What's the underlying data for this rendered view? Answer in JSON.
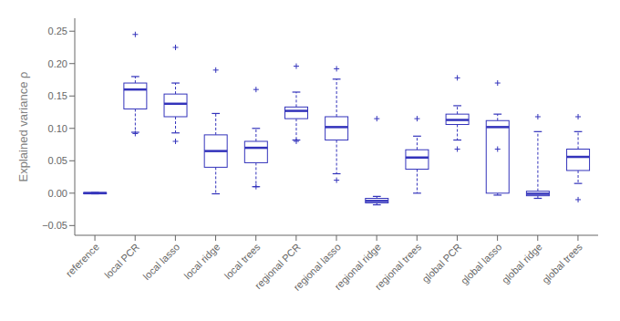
{
  "chart_data": {
    "type": "box",
    "categories": [
      "reference",
      "local PCR",
      "local lasso",
      "local ridge",
      "local trees",
      "regional PCR",
      "regional lasso",
      "regional ridge",
      "regional trees",
      "global PCR",
      "global lasso",
      "global ridge",
      "global trees"
    ],
    "values": [
      {
        "med": 0.0,
        "q1": -0.001,
        "q3": 0.001,
        "whislo": -0.001,
        "whishi": 0.001,
        "fliers_hi": [],
        "fliers_lo": []
      },
      {
        "med": 0.16,
        "q1": 0.13,
        "q3": 0.17,
        "whislo": 0.094,
        "whishi": 0.18,
        "fliers_hi": [
          0.245
        ],
        "fliers_lo": [
          0.092
        ]
      },
      {
        "med": 0.138,
        "q1": 0.118,
        "q3": 0.153,
        "whislo": 0.093,
        "whishi": 0.17,
        "fliers_hi": [
          0.225
        ],
        "fliers_lo": [
          0.08
        ]
      },
      {
        "med": 0.065,
        "q1": 0.04,
        "q3": 0.09,
        "whislo": -0.001,
        "whishi": 0.123,
        "fliers_hi": [
          0.19
        ],
        "fliers_lo": []
      },
      {
        "med": 0.07,
        "q1": 0.047,
        "q3": 0.08,
        "whislo": 0.01,
        "whishi": 0.1,
        "fliers_hi": [
          0.16
        ],
        "fliers_lo": [
          0.01
        ]
      },
      {
        "med": 0.127,
        "q1": 0.115,
        "q3": 0.133,
        "whislo": 0.082,
        "whishi": 0.156,
        "fliers_hi": [
          0.196
        ],
        "fliers_lo": [
          0.08
        ]
      },
      {
        "med": 0.102,
        "q1": 0.082,
        "q3": 0.118,
        "whislo": 0.03,
        "whishi": 0.176,
        "fliers_hi": [
          0.192
        ],
        "fliers_lo": [
          0.02
        ]
      },
      {
        "med": -0.012,
        "q1": -0.015,
        "q3": -0.008,
        "whislo": -0.018,
        "whishi": -0.005,
        "fliers_hi": [
          0.115
        ],
        "fliers_lo": []
      },
      {
        "med": 0.055,
        "q1": 0.037,
        "q3": 0.067,
        "whislo": 0.0,
        "whishi": 0.088,
        "fliers_hi": [
          0.115
        ],
        "fliers_lo": []
      },
      {
        "med": 0.113,
        "q1": 0.106,
        "q3": 0.122,
        "whislo": 0.082,
        "whishi": 0.135,
        "fliers_hi": [
          0.178
        ],
        "fliers_lo": [
          0.068
        ]
      },
      {
        "med": 0.102,
        "q1": 0.0,
        "q3": 0.112,
        "whislo": -0.003,
        "whishi": 0.122,
        "fliers_hi": [
          0.17
        ],
        "fliers_lo": [
          0.068
        ]
      },
      {
        "med": -0.001,
        "q1": -0.004,
        "q3": 0.003,
        "whislo": -0.008,
        "whishi": 0.095,
        "fliers_hi": [
          0.118
        ],
        "fliers_lo": []
      },
      {
        "med": 0.056,
        "q1": 0.035,
        "q3": 0.068,
        "whislo": 0.015,
        "whishi": 0.095,
        "fliers_hi": [
          0.118
        ],
        "fliers_lo": [
          -0.01
        ]
      }
    ],
    "color": "#3333bb",
    "ylabel": "Explained variance ρ",
    "ylim": [
      -0.065,
      0.27
    ],
    "yticks": [
      {
        "value": -0.05,
        "label": "−0.05"
      },
      {
        "value": 0,
        "label": "0.00"
      },
      0.05,
      {
        "value": 0.1,
        "label": "0.10"
      },
      0.15,
      {
        "value": 0.2,
        "label": "0.20"
      },
      0.25
    ],
    "grid": false
  }
}
